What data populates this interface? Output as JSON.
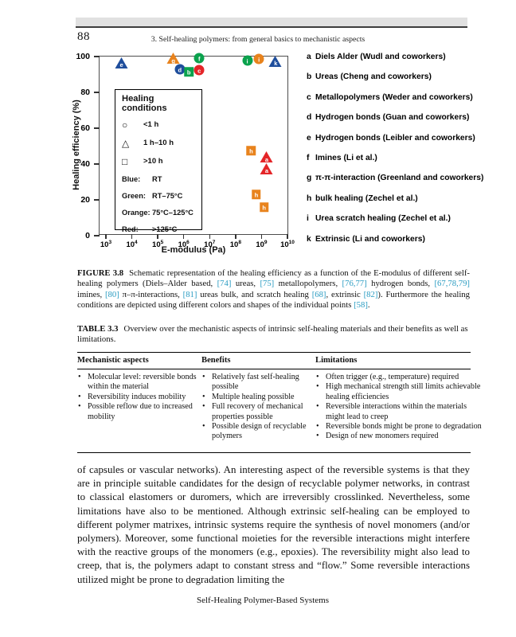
{
  "page": {
    "number": "88",
    "running_head": "3. Self-healing polymers: from general basics to mechanistic aspects",
    "footer": "Self-Healing Polymer-Based Systems"
  },
  "chart_data": {
    "type": "scatter",
    "xlabel": "E-modulus (Pa)",
    "ylabel": "Healing efficiency (%)",
    "x_axis": {
      "scale": "log",
      "base": "10",
      "exponents": [
        3,
        4,
        5,
        6,
        7,
        8,
        9,
        10
      ]
    },
    "y_axis": {
      "ticks": [
        0,
        20,
        40,
        60,
        80,
        100
      ],
      "lim": [
        0,
        100
      ]
    },
    "colors": {
      "blue": "#1f4e9c",
      "green": "#0ba24d",
      "orange": "#e8831d",
      "red": "#e42528"
    },
    "legend_box": {
      "title": "Healing conditions",
      "shape_rows": [
        {
          "symbol": "○",
          "label": "<1 h"
        },
        {
          "symbol": "△",
          "label": "1 h–10 h"
        },
        {
          "symbol": "□",
          "label": ">10 h"
        }
      ],
      "color_rows": [
        {
          "name": "Blue:",
          "value": "RT"
        },
        {
          "name": "Green:",
          "value": "RT–75°C"
        },
        {
          "name": "Orange:",
          "value": "75°C–125°C"
        },
        {
          "name": "Red:",
          "value": ">125°C"
        }
      ]
    },
    "points": [
      {
        "label": "e",
        "shape": "triangle",
        "color": "blue",
        "logx": 3.6,
        "y": 96.5
      },
      {
        "label": "g",
        "shape": "triangle",
        "color": "orange",
        "logx": 5.6,
        "y": 99
      },
      {
        "label": "d",
        "shape": "circle",
        "color": "blue",
        "logx": 5.85,
        "y": 93
      },
      {
        "label": "b",
        "shape": "square",
        "color": "green",
        "logx": 6.2,
        "y": 91.5
      },
      {
        "label": "c",
        "shape": "circle",
        "color": "red",
        "logx": 6.6,
        "y": 92.5
      },
      {
        "label": "f",
        "shape": "circle",
        "color": "green",
        "logx": 6.6,
        "y": 99
      },
      {
        "label": "i",
        "shape": "circle",
        "color": "green",
        "logx": 8.45,
        "y": 98
      },
      {
        "label": "i",
        "shape": "circle",
        "color": "orange",
        "logx": 8.9,
        "y": 98.5
      },
      {
        "label": "k",
        "shape": "triangle",
        "color": "blue",
        "logx": 9.55,
        "y": 97.5
      },
      {
        "label": "h",
        "shape": "square",
        "color": "orange",
        "logx": 8.6,
        "y": 47.5
      },
      {
        "label": "a",
        "shape": "triangle",
        "color": "red",
        "logx": 9.2,
        "y": 44
      },
      {
        "label": "a",
        "shape": "triangle",
        "color": "red",
        "logx": 9.2,
        "y": 37.5
      },
      {
        "label": "h",
        "shape": "square",
        "color": "orange",
        "logx": 8.8,
        "y": 23
      },
      {
        "label": "h",
        "shape": "square",
        "color": "orange",
        "logx": 9.1,
        "y": 16
      }
    ],
    "key_items": [
      {
        "key": "a",
        "text": "Diels Alder (Wudl and coworkers)"
      },
      {
        "key": "b",
        "text": "Ureas (Cheng and coworkers)"
      },
      {
        "key": "c",
        "text": "Metallopolymers (Weder and coworkers)"
      },
      {
        "key": "d",
        "text": "Hydrogen bonds (Guan and coworkers)"
      },
      {
        "key": "e",
        "text": "Hydrogen bonds (Leibler and coworkers)"
      },
      {
        "key": "f",
        "text": "Imines (Li et al.)"
      },
      {
        "key": "g",
        "text": "π-π-interaction (Greenland and coworkers)"
      },
      {
        "key": "h",
        "text": "bulk healing (Zechel et al.)"
      },
      {
        "key": "i",
        "text": "Urea scratch healing (Zechel et al.)"
      },
      {
        "key": "k",
        "text": "Extrinsic (Li and coworkers)"
      }
    ]
  },
  "figure_caption": {
    "label": "FIGURE 3.8",
    "text": "Schematic representation of the healing efficiency as a function of the E-modulus of different self-healing polymers (Diels–Alder based, [74] ureas, [75] metallopolymers, [76,77] hydrogen bonds, [67,78,79] imines, [80] π–π-interactions, [81] ureas bulk, and scratch healing [68], extrinsic [82]). Furthermore the healing conditions are depicted using different colors and shapes of the individual points [58]."
  },
  "table": {
    "label": "TABLE 3.3",
    "caption": "Overview over the mechanistic aspects of intrinsic self-healing materials and their benefits as well as limitations.",
    "columns": [
      {
        "header": "Mechanistic aspects",
        "items": [
          "Molecular level: reversible bonds within the material",
          "Reversibility induces mobility",
          "Possible reflow due to increased mobility"
        ]
      },
      {
        "header": "Benefits",
        "items": [
          "Relatively fast self-healing possible",
          "Multiple healing possible",
          "Full recovery of mechanical properties possible",
          "Possible design of recyclable polymers"
        ]
      },
      {
        "header": "Limitations",
        "items": [
          "Often trigger (e.g., temperature) required",
          "High mechanical strength still limits achievable healing efficiencies",
          "Reversible interactions within the materials might lead to creep",
          "Reversible bonds might be prone to degradation",
          "Design of new monomers required"
        ]
      }
    ]
  },
  "body_text": "of capsules or vascular networks). An interesting aspect of the reversible systems is that they are in principle suitable candidates for the design of recyclable polymer networks, in contrast to classical elastomers or duromers, which are irreversibly crosslinked. Nevertheless, some limitations have also to be mentioned. Although extrinsic self-healing can be employed to different polymer matrixes, intrinsic systems require the synthesis of novel monomers (and/or polymers). Moreover, some functional moieties for the reversible interactions might interfere with the reactive groups of the monomers (e.g., epoxies). The reversibility might also lead to creep, that is, the polymers adapt to constant stress and “flow.” Some reversible interactions utilized might be prone to degradation limiting the",
  "accent_colors": {
    "reference_link": "#2a9cc2"
  }
}
